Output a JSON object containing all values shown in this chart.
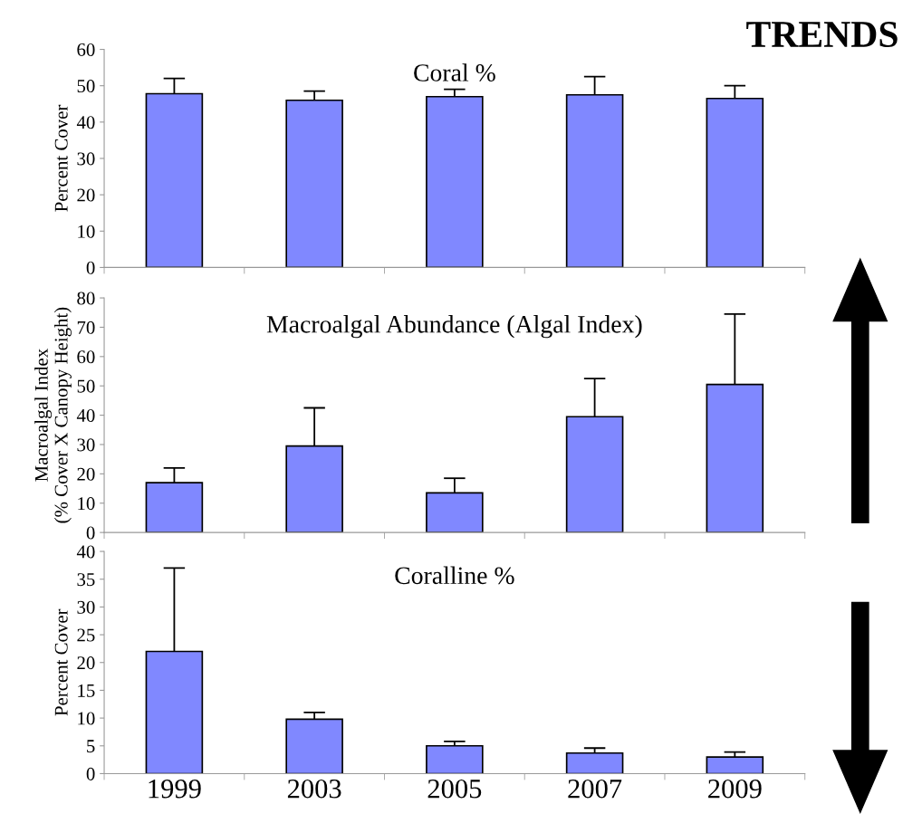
{
  "chart_data": [
    {
      "type": "bar",
      "title": "Coral %",
      "ylabel": "Percent Cover",
      "categories": [
        "1999",
        "2003",
        "2005",
        "2007",
        "2009"
      ],
      "color": "#8088ff",
      "values": [
        47.8,
        46,
        47,
        47.5,
        46.5
      ],
      "errors": [
        [
          47.8,
          52
        ],
        [
          46,
          48.5
        ],
        [
          47,
          49
        ],
        [
          47.5,
          52.5
        ],
        [
          46.5,
          50
        ]
      ],
      "ylim": [
        0,
        60
      ],
      "yticks": [
        0,
        10,
        20,
        30,
        40,
        50,
        60
      ],
      "tick_labels": "y",
      "grid": false,
      "legend": false,
      "annotations": [
        "TRENDS"
      ]
    },
    {
      "type": "bar",
      "title": "Macroalgal Abundance (Algal Index)",
      "ylabel": "Macroalgal Index\n(% Cover X Canopy Height)",
      "categories": [
        "1999",
        "2003",
        "2005",
        "2007",
        "2009"
      ],
      "color": "#8088ff",
      "values": [
        17,
        29.5,
        13.5,
        39.5,
        50.5
      ],
      "errors": [
        [
          17,
          22
        ],
        [
          29.5,
          42.5
        ],
        [
          13.5,
          18.5
        ],
        [
          39.5,
          52.5
        ],
        [
          50.5,
          74.5
        ]
      ],
      "ylim": [
        0,
        80
      ],
      "yticks": [
        0,
        10,
        20,
        30,
        40,
        50,
        60,
        70,
        80
      ],
      "tick_labels": "y",
      "grid": false,
      "legend": false
    },
    {
      "type": "bar",
      "title": "Coralline %",
      "ylabel": "Percent Cover",
      "categories": [
        "1999",
        "2003",
        "2005",
        "2007",
        "2009"
      ],
      "color": "#8088ff",
      "values": [
        22,
        9.8,
        5,
        3.7,
        3
      ],
      "errors": [
        [
          22,
          37
        ],
        [
          9.8,
          11
        ],
        [
          5,
          5.8
        ],
        [
          3.7,
          4.6
        ],
        [
          3,
          3.9
        ]
      ],
      "ylim": [
        0,
        40
      ],
      "yticks": [
        0,
        5,
        10,
        15,
        20,
        25,
        30,
        35,
        40
      ],
      "grid": false,
      "legend": false
    }
  ]
}
